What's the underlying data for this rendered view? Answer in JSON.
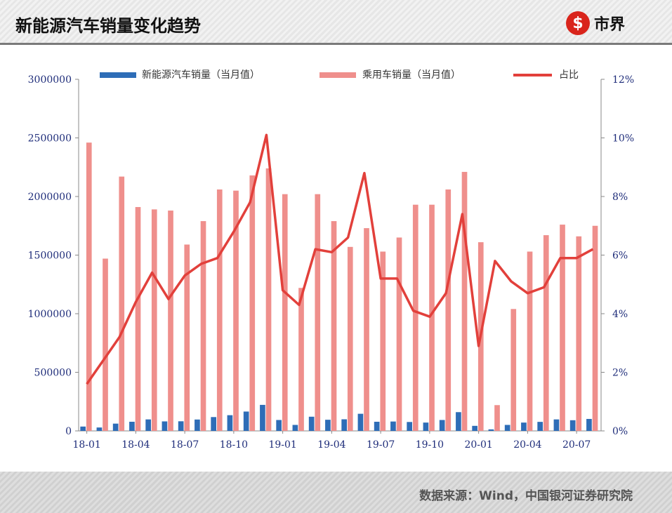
{
  "header": {
    "title": "新能源汽车销量变化趋势",
    "logo_text": "市界",
    "logo_mark": "$"
  },
  "footer": {
    "source": "数据来源：Wind，中国银河证券研究院"
  },
  "colors": {
    "nev_bar": "#2e6db7",
    "passenger_bar": "#ef8f8c",
    "share_line": "#e2403b",
    "axis_text": "#1f2d7a"
  },
  "chart_data": {
    "type": "bar",
    "title": "",
    "xlabel": "",
    "ylabel": "",
    "categories": [
      "18-01",
      "18-02",
      "18-03",
      "18-04",
      "18-05",
      "18-06",
      "18-07",
      "18-08",
      "18-09",
      "18-10",
      "18-11",
      "18-12",
      "19-01",
      "19-02",
      "19-03",
      "19-04",
      "19-05",
      "19-06",
      "19-07",
      "19-08",
      "19-09",
      "19-10",
      "19-11",
      "19-12",
      "20-01",
      "20-02",
      "20-03",
      "20-04",
      "20-05",
      "20-06",
      "20-07",
      "20-08"
    ],
    "x_tick_labels": [
      "18-01",
      "18-04",
      "18-07",
      "18-10",
      "19-01",
      "19-04",
      "19-07",
      "19-10",
      "20-01",
      "20-04",
      "20-07"
    ],
    "x_tick_indices": [
      0,
      3,
      6,
      9,
      12,
      15,
      18,
      21,
      24,
      27,
      30
    ],
    "y_left": {
      "ylim": [
        0,
        3000000
      ],
      "ticks": [
        "0",
        "500000",
        "1000000",
        "1500000",
        "2000000",
        "2500000",
        "3000000"
      ]
    },
    "y_right": {
      "ylim": [
        0,
        12
      ],
      "unit": "%",
      "ticks": [
        "0%",
        "2%",
        "4%",
        "6%",
        "8%",
        "10%",
        "12%"
      ]
    },
    "legend_position": "top",
    "grid": false,
    "series": [
      {
        "name": "新能源汽车销量（当月值）",
        "type": "bar",
        "axis": "left",
        "values": [
          37000,
          29000,
          62000,
          78000,
          98000,
          81000,
          82000,
          97000,
          118000,
          134000,
          165000,
          222000,
          93000,
          51000,
          121000,
          95000,
          99000,
          146000,
          78000,
          80000,
          76000,
          71000,
          93000,
          160000,
          43000,
          13000,
          51000,
          71000,
          77000,
          98000,
          91000,
          102000
        ]
      },
      {
        "name": "乘用车销量（当月值）",
        "type": "bar",
        "axis": "left",
        "values": [
          2460000,
          1470000,
          2170000,
          1910000,
          1890000,
          1880000,
          1590000,
          1790000,
          2060000,
          2050000,
          2180000,
          2240000,
          2020000,
          1220000,
          2020000,
          1790000,
          1570000,
          1730000,
          1530000,
          1650000,
          1930000,
          1930000,
          2060000,
          2210000,
          1610000,
          220000,
          1040000,
          1530000,
          1670000,
          1760000,
          1660000,
          1750000
        ]
      },
      {
        "name": "占比",
        "type": "line",
        "axis": "right",
        "values": [
          1.6,
          2.4,
          3.2,
          4.4,
          5.4,
          4.5,
          5.3,
          5.7,
          5.9,
          6.8,
          7.8,
          10.1,
          4.8,
          4.3,
          6.2,
          6.1,
          6.6,
          8.8,
          5.2,
          5.2,
          4.1,
          3.9,
          4.7,
          7.4,
          2.9,
          5.8,
          5.1,
          4.7,
          4.9,
          5.9,
          5.9,
          6.2
        ]
      }
    ]
  }
}
